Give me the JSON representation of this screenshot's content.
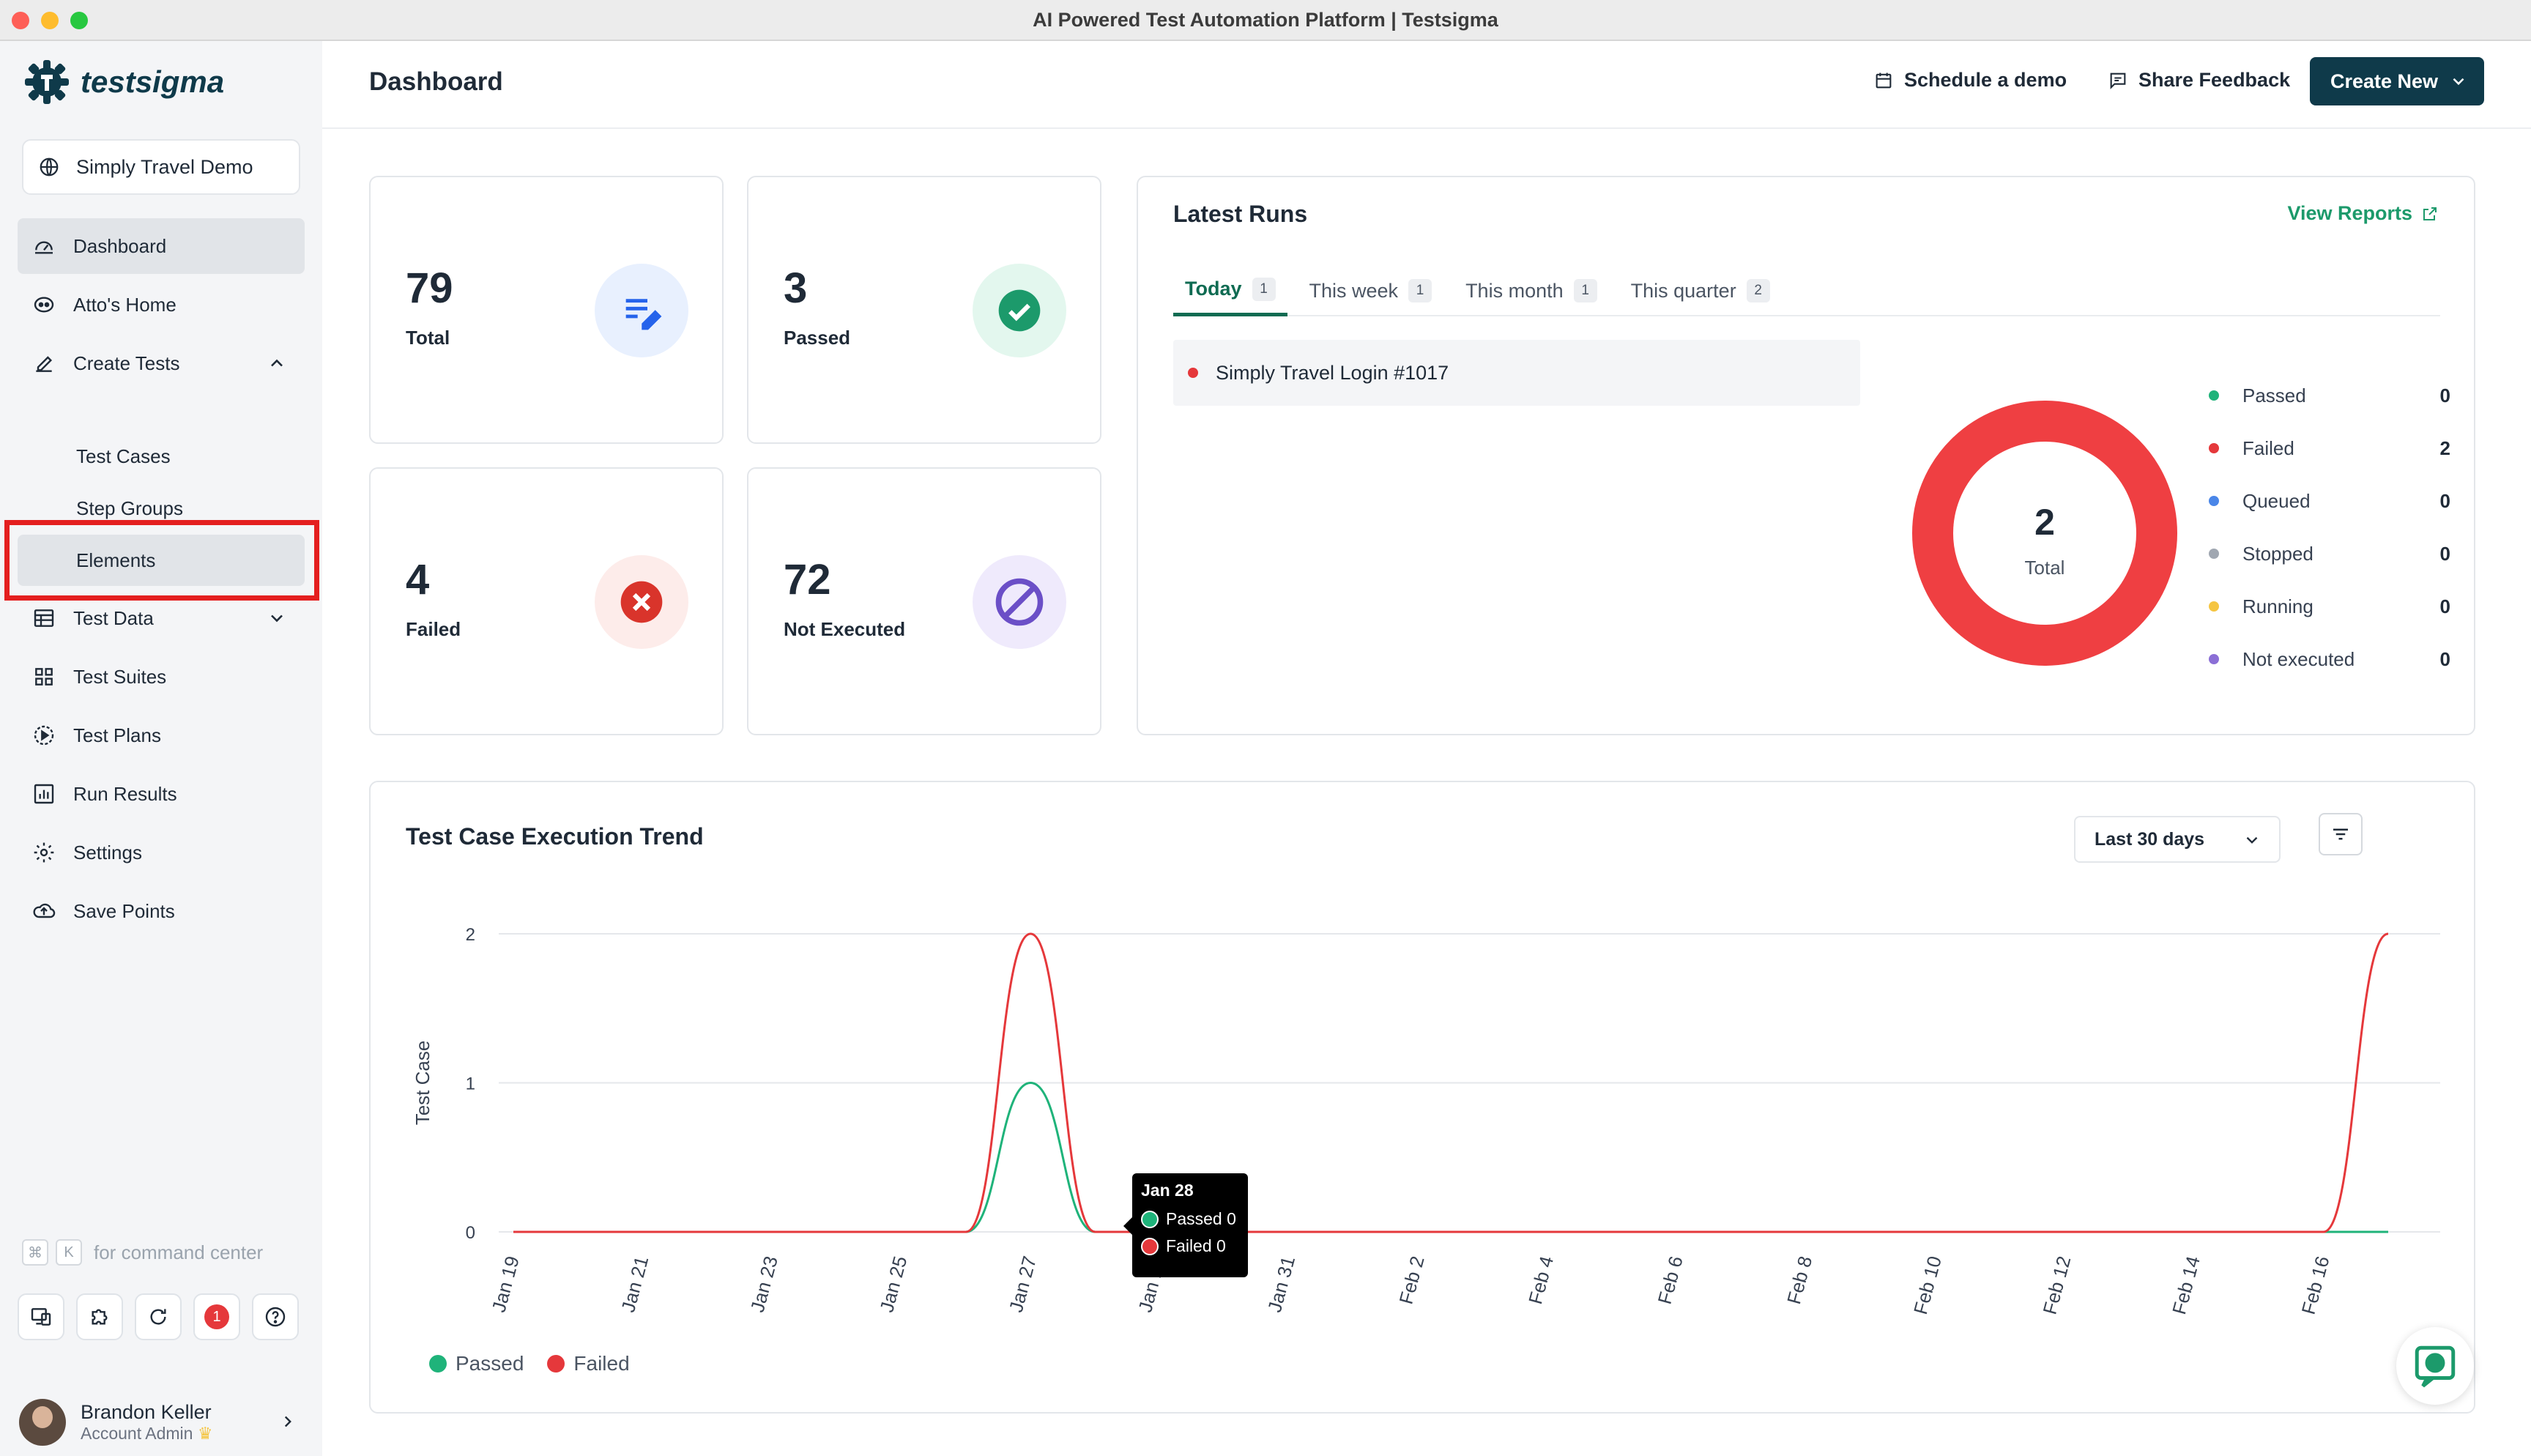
{
  "window": {
    "title": "AI Powered Test Automation Platform | Testsigma"
  },
  "brand": {
    "name": "testsigma",
    "accent": "#0f3a4a",
    "green": "#1c9a6b"
  },
  "project": {
    "name": "Simply Travel Demo"
  },
  "sidebar": {
    "items": [
      {
        "label": "Dashboard",
        "icon": "gauge-icon"
      },
      {
        "label": "Atto's Home",
        "icon": "atto-icon"
      },
      {
        "label": "Create Tests",
        "icon": "pencil-icon"
      },
      {
        "label": "Test Data",
        "icon": "table-icon"
      },
      {
        "label": "Test Suites",
        "icon": "grid-icon"
      },
      {
        "label": "Test Plans",
        "icon": "play-circle-icon"
      },
      {
        "label": "Run Results",
        "icon": "bar-chart-icon"
      },
      {
        "label": "Settings",
        "icon": "gear-icon"
      },
      {
        "label": "Save Points",
        "icon": "cloud-upload-icon"
      }
    ],
    "create_tests_sub": [
      "Test Cases",
      "Step Groups",
      "Elements"
    ],
    "command_hint": {
      "key1": "⌘",
      "key2": "K",
      "text": "for command center"
    },
    "notification_count": "1",
    "user": {
      "name": "Brandon Keller",
      "role": "Account Admin"
    }
  },
  "header": {
    "title": "Dashboard",
    "schedule_demo": "Schedule a demo",
    "share_feedback": "Share Feedback",
    "create_new": "Create New"
  },
  "stats": [
    {
      "value": "79",
      "label": "Total",
      "color": "#e8f0fe"
    },
    {
      "value": "3",
      "label": "Passed",
      "color": "#e3f7ee"
    },
    {
      "value": "4",
      "label": "Failed",
      "color": "#fdecea"
    },
    {
      "value": "72",
      "label": "Not Executed",
      "color": "#efeafc"
    }
  ],
  "latest_runs": {
    "title": "Latest Runs",
    "view_reports": "View Reports",
    "tabs": [
      {
        "label": "Today",
        "count": "1"
      },
      {
        "label": "This week",
        "count": "1"
      },
      {
        "label": "This month",
        "count": "1"
      },
      {
        "label": "This quarter",
        "count": "2"
      }
    ],
    "runs": [
      {
        "name": "Simply Travel Login #1017"
      }
    ],
    "donut": {
      "value": "2",
      "label": "Total"
    },
    "legend": [
      {
        "label": "Passed",
        "value": "0",
        "color": "#1fb37a"
      },
      {
        "label": "Failed",
        "value": "2",
        "color": "#e5383b"
      },
      {
        "label": "Queued",
        "value": "0",
        "color": "#4a86e8"
      },
      {
        "label": "Stopped",
        "value": "0",
        "color": "#a0a7b1"
      },
      {
        "label": "Running",
        "value": "0",
        "color": "#f5c542"
      },
      {
        "label": "Not executed",
        "value": "0",
        "color": "#8b6fd6"
      }
    ]
  },
  "trend": {
    "title": "Test Case Execution Trend",
    "range": "Last 30 days",
    "tooltip": {
      "date": "Jan 28",
      "passed": "Passed 0",
      "failed": "Failed 0"
    }
  },
  "chart_data": {
    "type": "line",
    "ylabel": "Test Case",
    "ylim": [
      0,
      2
    ],
    "yticks": [
      "0",
      "1",
      "2"
    ],
    "x": [
      "Jan 19",
      "Jan 20",
      "Jan 21",
      "Jan 22",
      "Jan 23",
      "Jan 24",
      "Jan 25",
      "Jan 26",
      "Jan 27",
      "Jan 28",
      "Jan 29",
      "Jan 30",
      "Jan 31",
      "Feb 1",
      "Feb 2",
      "Feb 3",
      "Feb 4",
      "Feb 5",
      "Feb 6",
      "Feb 7",
      "Feb 8",
      "Feb 9",
      "Feb 10",
      "Feb 11",
      "Feb 12",
      "Feb 13",
      "Feb 14",
      "Feb 15",
      "Feb 16",
      "Feb 17"
    ],
    "xticks": [
      "Jan 19",
      "Jan 21",
      "Jan 23",
      "Jan 25",
      "Jan 27",
      "Jan 29",
      "Jan 31",
      "Feb 2",
      "Feb 4",
      "Feb 6",
      "Feb 8",
      "Feb 10",
      "Feb 12",
      "Feb 14",
      "Feb 16"
    ],
    "series": [
      {
        "name": "Passed",
        "color": "#1fb37a",
        "values": [
          0,
          0,
          0,
          0,
          0,
          0,
          0,
          0,
          1,
          0,
          0,
          0,
          0,
          0,
          0,
          0,
          0,
          0,
          0,
          0,
          0,
          0,
          0,
          0,
          0,
          0,
          0,
          0,
          0,
          0
        ]
      },
      {
        "name": "Failed",
        "color": "#e5383b",
        "values": [
          0,
          0,
          0,
          0,
          0,
          0,
          0,
          0,
          2,
          0,
          0,
          0,
          0,
          0,
          0,
          0,
          0,
          0,
          0,
          0,
          0,
          0,
          0,
          0,
          0,
          0,
          0,
          0,
          0,
          2
        ]
      }
    ]
  }
}
